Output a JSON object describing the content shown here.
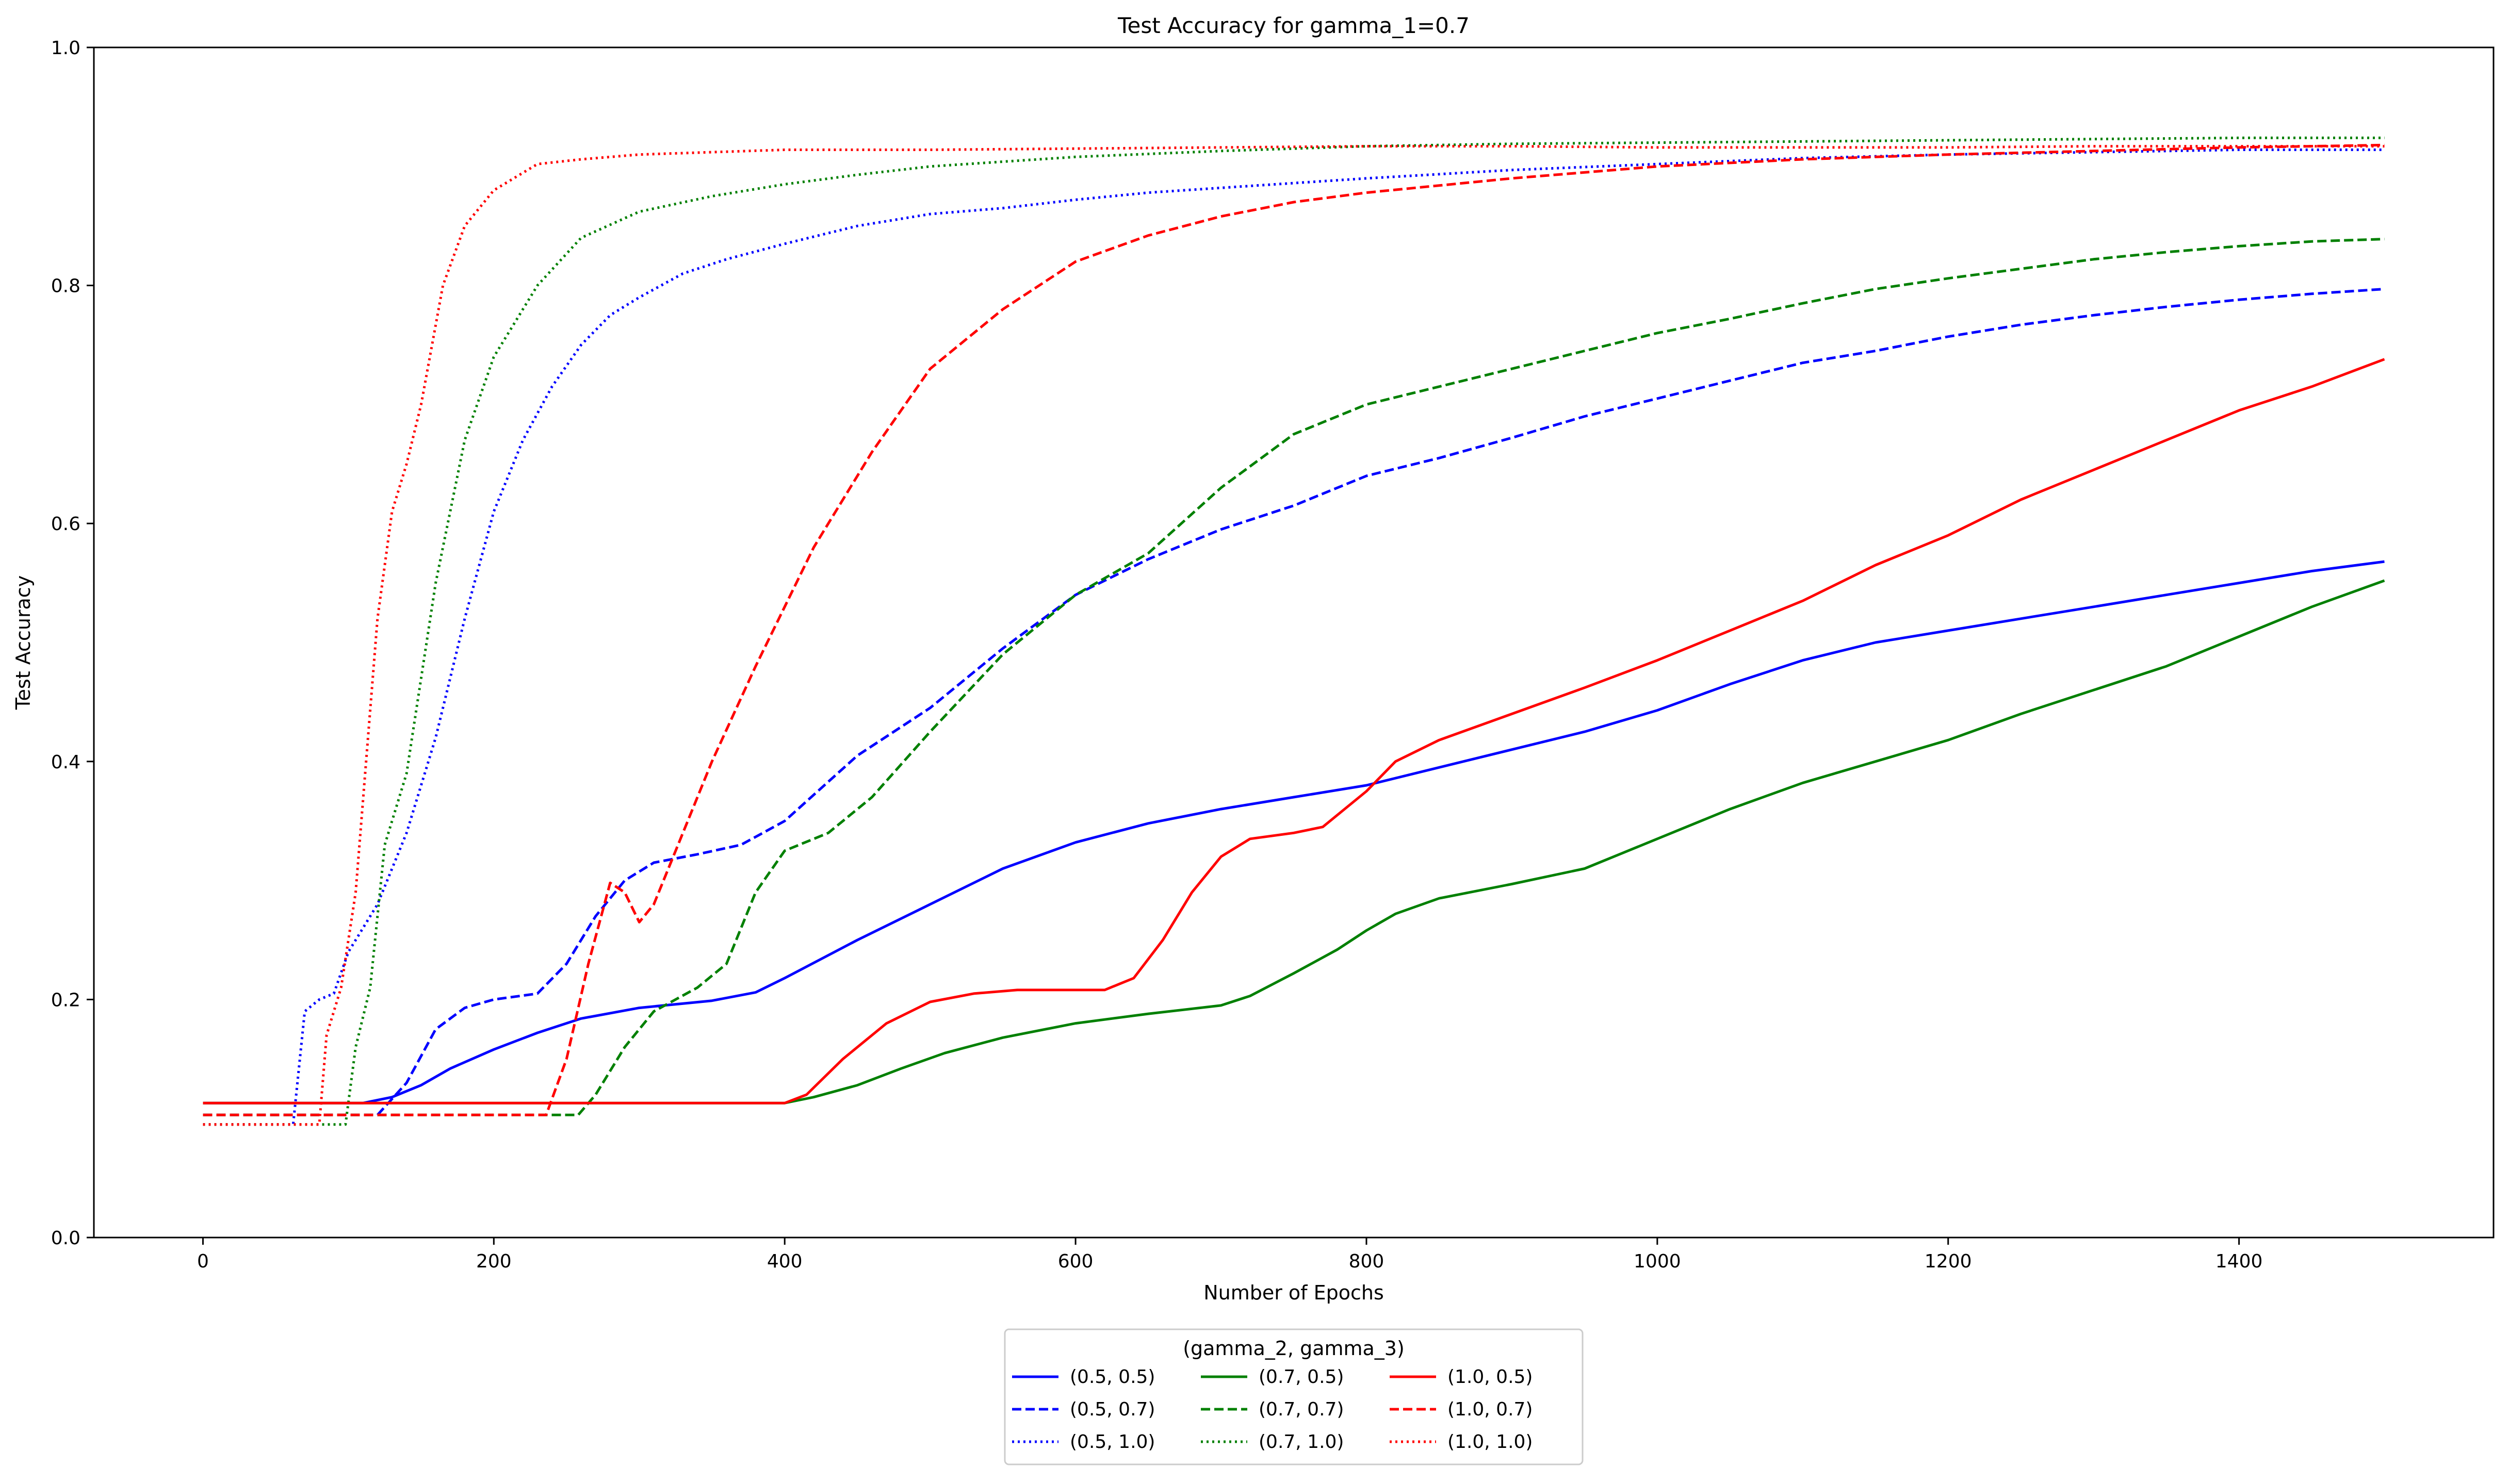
{
  "chart_data": {
    "type": "line",
    "title": "Test Accuracy for gamma_1=0.7",
    "xlabel": "Number of Epochs",
    "ylabel": "Test Accuracy",
    "xlim": [
      -75,
      1575
    ],
    "ylim": [
      0.0,
      1.0
    ],
    "x_ticks": [
      0,
      200,
      400,
      600,
      800,
      1000,
      1200,
      1400
    ],
    "x_tick_labels": [
      "0",
      "200",
      "400",
      "600",
      "800",
      "1000",
      "1200",
      "1400"
    ],
    "y_ticks": [
      0.0,
      0.2,
      0.4,
      0.6,
      0.8,
      1.0
    ],
    "y_tick_labels": [
      "0.0",
      "0.2",
      "0.4",
      "0.6",
      "0.8",
      "1.0"
    ],
    "grid": false,
    "legend": {
      "title": "(gamma_2, gamma_3)",
      "position": "bottom-center",
      "columns": 3
    },
    "series": [
      {
        "name": "(0.5, 0.5)",
        "color": "#0000ff",
        "dash": "solid",
        "points": [
          [
            0,
            0.113
          ],
          [
            110,
            0.113
          ],
          [
            130,
            0.118
          ],
          [
            150,
            0.128
          ],
          [
            170,
            0.142
          ],
          [
            200,
            0.158
          ],
          [
            230,
            0.172
          ],
          [
            260,
            0.184
          ],
          [
            300,
            0.193
          ],
          [
            350,
            0.199
          ],
          [
            380,
            0.206
          ],
          [
            400,
            0.218
          ],
          [
            450,
            0.25
          ],
          [
            500,
            0.28
          ],
          [
            550,
            0.31
          ],
          [
            600,
            0.332
          ],
          [
            650,
            0.348
          ],
          [
            700,
            0.36
          ],
          [
            750,
            0.37
          ],
          [
            800,
            0.38
          ],
          [
            850,
            0.395
          ],
          [
            900,
            0.41
          ],
          [
            950,
            0.425
          ],
          [
            1000,
            0.443
          ],
          [
            1050,
            0.465
          ],
          [
            1100,
            0.485
          ],
          [
            1150,
            0.5
          ],
          [
            1200,
            0.51
          ],
          [
            1250,
            0.52
          ],
          [
            1300,
            0.53
          ],
          [
            1350,
            0.54
          ],
          [
            1400,
            0.55
          ],
          [
            1450,
            0.56
          ],
          [
            1500,
            0.568
          ]
        ]
      },
      {
        "name": "(0.5, 0.7)",
        "color": "#0000ff",
        "dash": "dashed",
        "points": [
          [
            0,
            0.103
          ],
          [
            120,
            0.103
          ],
          [
            140,
            0.13
          ],
          [
            160,
            0.175
          ],
          [
            180,
            0.193
          ],
          [
            200,
            0.2
          ],
          [
            230,
            0.205
          ],
          [
            250,
            0.23
          ],
          [
            270,
            0.27
          ],
          [
            290,
            0.3
          ],
          [
            310,
            0.315
          ],
          [
            340,
            0.322
          ],
          [
            370,
            0.33
          ],
          [
            400,
            0.35
          ],
          [
            450,
            0.405
          ],
          [
            500,
            0.445
          ],
          [
            550,
            0.495
          ],
          [
            600,
            0.54
          ],
          [
            650,
            0.57
          ],
          [
            700,
            0.595
          ],
          [
            750,
            0.615
          ],
          [
            800,
            0.64
          ],
          [
            850,
            0.655
          ],
          [
            900,
            0.672
          ],
          [
            950,
            0.69
          ],
          [
            1000,
            0.705
          ],
          [
            1050,
            0.72
          ],
          [
            1100,
            0.735
          ],
          [
            1150,
            0.745
          ],
          [
            1200,
            0.757
          ],
          [
            1250,
            0.767
          ],
          [
            1300,
            0.775
          ],
          [
            1350,
            0.782
          ],
          [
            1400,
            0.788
          ],
          [
            1450,
            0.793
          ],
          [
            1500,
            0.797
          ]
        ]
      },
      {
        "name": "(0.5, 1.0)",
        "color": "#0000ff",
        "dash": "dotted",
        "points": [
          [
            0,
            0.095
          ],
          [
            62,
            0.095
          ],
          [
            70,
            0.19
          ],
          [
            80,
            0.2
          ],
          [
            90,
            0.205
          ],
          [
            100,
            0.24
          ],
          [
            120,
            0.28
          ],
          [
            140,
            0.34
          ],
          [
            160,
            0.42
          ],
          [
            180,
            0.52
          ],
          [
            200,
            0.61
          ],
          [
            220,
            0.67
          ],
          [
            240,
            0.715
          ],
          [
            260,
            0.75
          ],
          [
            280,
            0.775
          ],
          [
            300,
            0.79
          ],
          [
            330,
            0.81
          ],
          [
            360,
            0.822
          ],
          [
            400,
            0.835
          ],
          [
            450,
            0.85
          ],
          [
            500,
            0.86
          ],
          [
            550,
            0.865
          ],
          [
            600,
            0.872
          ],
          [
            650,
            0.878
          ],
          [
            700,
            0.882
          ],
          [
            800,
            0.89
          ],
          [
            900,
            0.897
          ],
          [
            1000,
            0.902
          ],
          [
            1100,
            0.907
          ],
          [
            1200,
            0.91
          ],
          [
            1300,
            0.912
          ],
          [
            1400,
            0.914
          ],
          [
            1500,
            0.914
          ]
        ]
      },
      {
        "name": "(0.7, 0.5)",
        "color": "#008000",
        "dash": "solid",
        "points": [
          [
            0,
            0.113
          ],
          [
            400,
            0.113
          ],
          [
            420,
            0.118
          ],
          [
            450,
            0.128
          ],
          [
            480,
            0.142
          ],
          [
            510,
            0.155
          ],
          [
            550,
            0.168
          ],
          [
            600,
            0.18
          ],
          [
            650,
            0.188
          ],
          [
            700,
            0.195
          ],
          [
            720,
            0.203
          ],
          [
            750,
            0.222
          ],
          [
            780,
            0.242
          ],
          [
            800,
            0.258
          ],
          [
            820,
            0.272
          ],
          [
            850,
            0.285
          ],
          [
            900,
            0.297
          ],
          [
            950,
            0.31
          ],
          [
            1000,
            0.335
          ],
          [
            1050,
            0.36
          ],
          [
            1100,
            0.382
          ],
          [
            1150,
            0.4
          ],
          [
            1200,
            0.418
          ],
          [
            1250,
            0.44
          ],
          [
            1300,
            0.46
          ],
          [
            1350,
            0.48
          ],
          [
            1400,
            0.505
          ],
          [
            1450,
            0.53
          ],
          [
            1500,
            0.552
          ]
        ]
      },
      {
        "name": "(0.7, 0.7)",
        "color": "#008000",
        "dash": "dashed",
        "points": [
          [
            0,
            0.103
          ],
          [
            258,
            0.103
          ],
          [
            270,
            0.12
          ],
          [
            290,
            0.16
          ],
          [
            310,
            0.19
          ],
          [
            340,
            0.21
          ],
          [
            360,
            0.23
          ],
          [
            380,
            0.29
          ],
          [
            400,
            0.325
          ],
          [
            430,
            0.34
          ],
          [
            460,
            0.37
          ],
          [
            500,
            0.425
          ],
          [
            550,
            0.49
          ],
          [
            600,
            0.54
          ],
          [
            650,
            0.575
          ],
          [
            700,
            0.63
          ],
          [
            750,
            0.675
          ],
          [
            800,
            0.7
          ],
          [
            850,
            0.715
          ],
          [
            900,
            0.73
          ],
          [
            950,
            0.745
          ],
          [
            1000,
            0.76
          ],
          [
            1050,
            0.772
          ],
          [
            1100,
            0.785
          ],
          [
            1150,
            0.797
          ],
          [
            1200,
            0.806
          ],
          [
            1250,
            0.814
          ],
          [
            1300,
            0.822
          ],
          [
            1350,
            0.828
          ],
          [
            1400,
            0.833
          ],
          [
            1450,
            0.837
          ],
          [
            1500,
            0.839
          ]
        ]
      },
      {
        "name": "(0.7, 1.0)",
        "color": "#008000",
        "dash": "dotted",
        "points": [
          [
            0,
            0.095
          ],
          [
            98,
            0.095
          ],
          [
            105,
            0.16
          ],
          [
            115,
            0.21
          ],
          [
            125,
            0.33
          ],
          [
            140,
            0.39
          ],
          [
            160,
            0.55
          ],
          [
            180,
            0.67
          ],
          [
            200,
            0.74
          ],
          [
            230,
            0.8
          ],
          [
            260,
            0.84
          ],
          [
            300,
            0.862
          ],
          [
            350,
            0.875
          ],
          [
            400,
            0.885
          ],
          [
            450,
            0.893
          ],
          [
            500,
            0.9
          ],
          [
            600,
            0.908
          ],
          [
            700,
            0.913
          ],
          [
            800,
            0.917
          ],
          [
            900,
            0.919
          ],
          [
            1000,
            0.92
          ],
          [
            1100,
            0.921
          ],
          [
            1200,
            0.922
          ],
          [
            1300,
            0.923
          ],
          [
            1400,
            0.924
          ],
          [
            1500,
            0.924
          ]
        ]
      },
      {
        "name": "(1.0, 0.5)",
        "color": "#ff0000",
        "dash": "solid",
        "points": [
          [
            0,
            0.113
          ],
          [
            400,
            0.113
          ],
          [
            415,
            0.12
          ],
          [
            440,
            0.15
          ],
          [
            470,
            0.18
          ],
          [
            500,
            0.198
          ],
          [
            530,
            0.205
          ],
          [
            560,
            0.208
          ],
          [
            620,
            0.208
          ],
          [
            640,
            0.218
          ],
          [
            660,
            0.25
          ],
          [
            680,
            0.29
          ],
          [
            700,
            0.32
          ],
          [
            720,
            0.335
          ],
          [
            750,
            0.34
          ],
          [
            770,
            0.345
          ],
          [
            800,
            0.375
          ],
          [
            820,
            0.4
          ],
          [
            850,
            0.418
          ],
          [
            900,
            0.44
          ],
          [
            950,
            0.462
          ],
          [
            1000,
            0.485
          ],
          [
            1050,
            0.51
          ],
          [
            1100,
            0.535
          ],
          [
            1150,
            0.565
          ],
          [
            1200,
            0.59
          ],
          [
            1250,
            0.62
          ],
          [
            1300,
            0.645
          ],
          [
            1350,
            0.67
          ],
          [
            1400,
            0.695
          ],
          [
            1450,
            0.715
          ],
          [
            1500,
            0.738
          ]
        ]
      },
      {
        "name": "(1.0, 0.7)",
        "color": "#ff0000",
        "dash": "dashed",
        "points": [
          [
            0,
            0.103
          ],
          [
            236,
            0.103
          ],
          [
            250,
            0.15
          ],
          [
            265,
            0.23
          ],
          [
            280,
            0.298
          ],
          [
            290,
            0.29
          ],
          [
            300,
            0.265
          ],
          [
            310,
            0.28
          ],
          [
            330,
            0.34
          ],
          [
            350,
            0.4
          ],
          [
            380,
            0.48
          ],
          [
            420,
            0.58
          ],
          [
            460,
            0.66
          ],
          [
            500,
            0.73
          ],
          [
            550,
            0.78
          ],
          [
            600,
            0.82
          ],
          [
            650,
            0.842
          ],
          [
            700,
            0.858
          ],
          [
            750,
            0.87
          ],
          [
            800,
            0.878
          ],
          [
            900,
            0.89
          ],
          [
            1000,
            0.9
          ],
          [
            1100,
            0.906
          ],
          [
            1200,
            0.91
          ],
          [
            1300,
            0.913
          ],
          [
            1400,
            0.916
          ],
          [
            1500,
            0.918
          ]
        ]
      },
      {
        "name": "(1.0, 1.0)",
        "color": "#ff0000",
        "dash": "dotted",
        "points": [
          [
            0,
            0.095
          ],
          [
            80,
            0.095
          ],
          [
            85,
            0.17
          ],
          [
            95,
            0.21
          ],
          [
            105,
            0.29
          ],
          [
            120,
            0.52
          ],
          [
            130,
            0.61
          ],
          [
            140,
            0.65
          ],
          [
            150,
            0.7
          ],
          [
            165,
            0.8
          ],
          [
            180,
            0.85
          ],
          [
            200,
            0.88
          ],
          [
            230,
            0.902
          ],
          [
            260,
            0.906
          ],
          [
            300,
            0.91
          ],
          [
            350,
            0.912
          ],
          [
            400,
            0.914
          ],
          [
            500,
            0.914
          ],
          [
            600,
            0.915
          ],
          [
            700,
            0.916
          ],
          [
            800,
            0.917
          ],
          [
            900,
            0.917
          ],
          [
            1000,
            0.916
          ],
          [
            1100,
            0.916
          ],
          [
            1200,
            0.916
          ],
          [
            1300,
            0.917
          ],
          [
            1400,
            0.917
          ],
          [
            1500,
            0.917
          ]
        ]
      }
    ]
  }
}
